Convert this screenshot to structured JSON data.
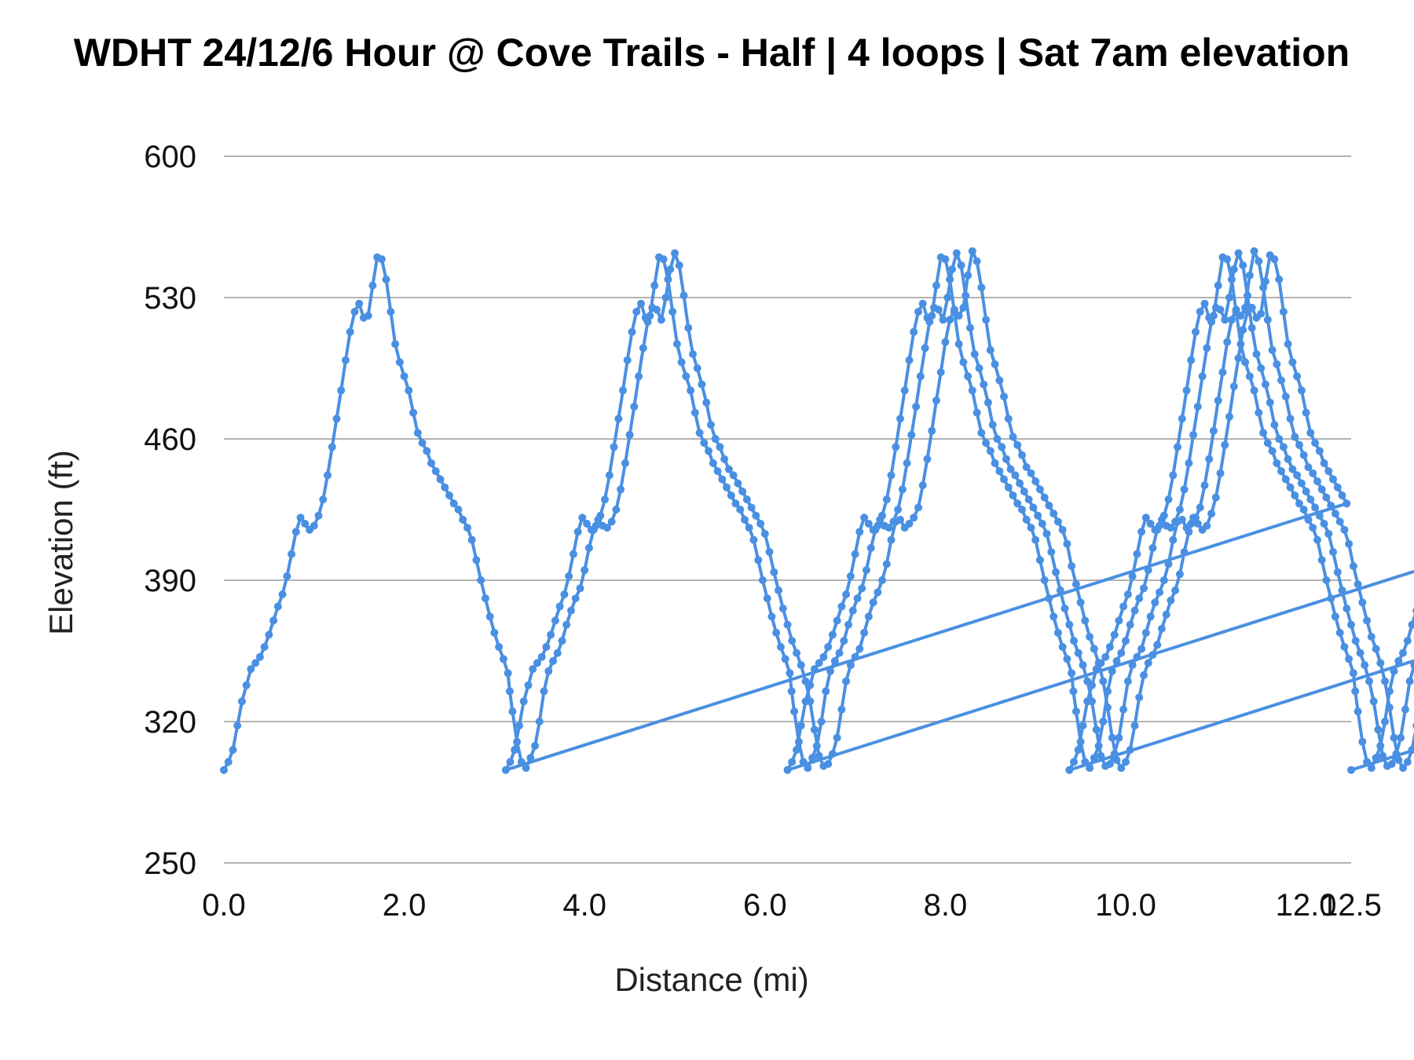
{
  "chart_data": {
    "type": "line",
    "title": "WDHT 24/12/6 Hour @ Cove Trails - Half | 4 loops | Sat 7am elevation",
    "xlabel": "Distance (mi)",
    "ylabel": "Elevation (ft)",
    "xlim": [
      0,
      12.5
    ],
    "ylim": [
      250,
      600
    ],
    "x_ticks": [
      "0.0",
      "2.0",
      "4.0",
      "6.0",
      "8.0",
      "10.0",
      "12.0",
      "12.5"
    ],
    "y_ticks": [
      "600",
      "530",
      "460",
      "390",
      "320",
      "250"
    ],
    "grid": true,
    "legend": "none",
    "color": "#4a90e2",
    "series": [
      {
        "loops": 4,
        "loop_length": 3.125,
        "points_per_loop": [
          [
            0.0,
            296
          ],
          [
            0.05,
            300
          ],
          [
            0.1,
            306
          ],
          [
            0.15,
            318
          ],
          [
            0.2,
            330
          ],
          [
            0.25,
            338
          ],
          [
            0.3,
            346
          ],
          [
            0.35,
            349
          ],
          [
            0.4,
            352
          ],
          [
            0.45,
            357
          ],
          [
            0.5,
            363
          ],
          [
            0.55,
            370
          ],
          [
            0.6,
            377
          ],
          [
            0.65,
            383
          ],
          [
            0.7,
            392
          ],
          [
            0.75,
            403
          ],
          [
            0.8,
            414
          ],
          [
            0.85,
            421
          ],
          [
            0.9,
            418
          ],
          [
            0.95,
            415
          ],
          [
            1.0,
            417
          ],
          [
            1.05,
            422
          ],
          [
            1.1,
            430
          ],
          [
            1.15,
            442
          ],
          [
            1.2,
            456
          ],
          [
            1.25,
            470
          ],
          [
            1.3,
            484
          ],
          [
            1.35,
            499
          ],
          [
            1.4,
            513
          ],
          [
            1.45,
            523
          ],
          [
            1.5,
            527
          ],
          [
            1.55,
            520
          ],
          [
            1.6,
            521
          ],
          [
            1.65,
            536
          ],
          [
            1.7,
            550
          ],
          [
            1.75,
            549
          ],
          [
            1.8,
            539
          ],
          [
            1.85,
            523
          ],
          [
            1.9,
            507
          ],
          [
            1.95,
            498
          ],
          [
            2.0,
            491
          ],
          [
            2.05,
            484
          ],
          [
            2.1,
            473
          ],
          [
            2.15,
            463
          ],
          [
            2.2,
            458
          ],
          [
            2.25,
            454
          ],
          [
            2.3,
            448
          ],
          [
            2.35,
            444
          ],
          [
            2.4,
            440
          ],
          [
            2.45,
            436
          ],
          [
            2.5,
            432
          ],
          [
            2.55,
            428
          ],
          [
            2.6,
            425
          ],
          [
            2.65,
            420
          ],
          [
            2.7,
            416
          ],
          [
            2.75,
            410
          ],
          [
            2.8,
            400
          ],
          [
            2.85,
            390
          ],
          [
            2.9,
            381
          ],
          [
            2.95,
            372
          ],
          [
            3.0,
            364
          ],
          [
            3.05,
            357
          ],
          [
            3.1,
            351
          ],
          [
            3.15,
            344
          ],
          [
            3.17,
            335
          ],
          [
            3.2,
            325
          ],
          [
            3.25,
            310
          ],
          [
            3.3,
            300
          ],
          [
            3.35,
            297
          ],
          [
            3.4,
            302
          ],
          [
            3.45,
            308
          ],
          [
            3.5,
            320
          ],
          [
            3.55,
            335
          ],
          [
            3.6,
            345
          ],
          [
            3.65,
            350
          ],
          [
            3.7,
            354
          ],
          [
            3.75,
            360
          ],
          [
            3.8,
            368
          ],
          [
            3.85,
            375
          ],
          [
            3.9,
            381
          ],
          [
            3.95,
            386
          ],
          [
            4.0,
            395
          ],
          [
            4.05,
            406
          ],
          [
            4.1,
            415
          ],
          [
            4.15,
            420
          ],
          [
            4.2,
            417
          ],
          [
            4.25,
            416
          ],
          [
            4.3,
            419
          ],
          [
            4.35,
            425
          ],
          [
            4.4,
            435
          ],
          [
            4.45,
            448
          ],
          [
            4.5,
            462
          ],
          [
            4.55,
            476
          ],
          [
            4.6,
            491
          ],
          [
            4.65,
            505
          ],
          [
            4.7,
            518
          ],
          [
            4.75,
            525
          ],
          [
            4.8,
            524
          ],
          [
            4.85,
            519
          ],
          [
            4.9,
            530
          ],
          [
            4.95,
            544
          ],
          [
            5.0,
            552
          ],
          [
            5.05,
            546
          ],
          [
            5.1,
            531
          ],
          [
            5.15,
            515
          ],
          [
            5.2,
            502
          ],
          [
            5.25,
            495
          ],
          [
            5.3,
            487
          ],
          [
            5.35,
            478
          ],
          [
            5.4,
            467
          ],
          [
            5.45,
            460
          ],
          [
            5.5,
            456
          ],
          [
            5.55,
            450
          ],
          [
            5.6,
            445
          ],
          [
            5.65,
            442
          ],
          [
            5.7,
            438
          ],
          [
            5.75,
            434
          ],
          [
            5.8,
            430
          ],
          [
            5.85,
            426
          ],
          [
            5.9,
            422
          ],
          [
            5.95,
            418
          ],
          [
            6.0,
            413
          ],
          [
            6.05,
            404
          ],
          [
            6.1,
            394
          ],
          [
            6.15,
            385
          ],
          [
            6.2,
            376
          ],
          [
            6.25,
            368
          ],
          [
            6.3,
            360
          ],
          [
            6.35,
            354
          ],
          [
            6.4,
            348
          ],
          [
            6.45,
            340
          ],
          [
            6.5,
            330
          ],
          [
            6.55,
            316
          ],
          [
            6.6,
            303
          ],
          [
            6.65,
            298
          ],
          [
            6.7,
            299
          ],
          [
            6.75,
            304
          ],
          [
            6.8,
            312
          ],
          [
            6.85,
            326
          ],
          [
            6.9,
            340
          ],
          [
            6.95,
            348
          ],
          [
            7.0,
            352
          ],
          [
            7.05,
            356
          ],
          [
            7.1,
            364
          ],
          [
            7.15,
            372
          ],
          [
            7.2,
            379
          ],
          [
            7.25,
            384
          ],
          [
            7.3,
            390
          ],
          [
            7.35,
            398
          ],
          [
            7.4,
            410
          ],
          [
            7.45,
            419
          ],
          [
            7.5,
            420
          ],
          [
            7.55,
            416
          ],
          [
            7.6,
            418
          ],
          [
            7.65,
            421
          ],
          [
            7.7,
            426
          ],
          [
            7.75,
            437
          ],
          [
            7.8,
            450
          ],
          [
            7.85,
            464
          ],
          [
            7.9,
            479
          ],
          [
            7.95,
            493
          ],
          [
            8.0,
            508
          ],
          [
            8.05,
            519
          ],
          [
            8.1,
            524
          ],
          [
            8.15,
            521
          ],
          [
            8.2,
            525
          ],
          [
            8.25,
            541
          ],
          [
            8.3,
            553
          ],
          [
            8.35,
            548
          ],
          [
            8.4,
            535
          ],
          [
            8.45,
            519
          ],
          [
            8.5,
            504
          ],
          [
            8.55,
            497
          ],
          [
            8.6,
            489
          ],
          [
            8.65,
            481
          ],
          [
            8.7,
            470
          ],
          [
            8.75,
            461
          ],
          [
            8.8,
            457
          ],
          [
            8.85,
            452
          ],
          [
            8.9,
            446
          ],
          [
            8.95,
            443
          ],
          [
            9.0,
            439
          ],
          [
            9.05,
            435
          ],
          [
            9.1,
            431
          ],
          [
            9.15,
            427
          ],
          [
            9.2,
            423
          ],
          [
            9.25,
            419
          ],
          [
            9.3,
            415
          ],
          [
            9.35,
            408
          ],
          [
            9.4,
            397
          ],
          [
            9.45,
            388
          ],
          [
            9.5,
            379
          ],
          [
            9.55,
            370
          ],
          [
            9.6,
            362
          ],
          [
            9.65,
            356
          ],
          [
            9.7,
            349
          ],
          [
            9.75,
            340
          ],
          [
            9.8,
            327
          ],
          [
            9.85,
            312
          ],
          [
            9.9,
            301
          ],
          [
            9.95,
            297
          ],
          [
            10.0,
            300
          ],
          [
            10.05,
            306
          ],
          [
            10.1,
            318
          ],
          [
            10.15,
            332
          ],
          [
            10.2,
            343
          ],
          [
            10.25,
            349
          ],
          [
            10.3,
            353
          ],
          [
            10.35,
            358
          ],
          [
            10.4,
            366
          ],
          [
            10.45,
            373
          ],
          [
            10.5,
            380
          ],
          [
            10.55,
            385
          ],
          [
            10.6,
            393
          ],
          [
            10.65,
            404
          ],
          [
            10.7,
            414
          ],
          [
            10.75,
            421
          ],
          [
            10.8,
            418
          ],
          [
            10.85,
            415
          ],
          [
            10.9,
            417
          ],
          [
            10.95,
            423
          ],
          [
            11.0,
            431
          ],
          [
            11.05,
            443
          ],
          [
            11.1,
            457
          ],
          [
            11.15,
            471
          ],
          [
            11.2,
            486
          ],
          [
            11.25,
            500
          ],
          [
            11.3,
            514
          ],
          [
            11.35,
            523
          ],
          [
            11.4,
            525
          ],
          [
            11.45,
            520
          ],
          [
            11.5,
            522
          ],
          [
            11.55,
            538
          ],
          [
            11.6,
            551
          ],
          [
            11.65,
            549
          ],
          [
            11.7,
            539
          ],
          [
            11.75,
            523
          ],
          [
            11.8,
            507
          ],
          [
            11.85,
            498
          ],
          [
            11.9,
            491
          ],
          [
            11.95,
            484
          ],
          [
            12.0,
            473
          ],
          [
            12.05,
            463
          ],
          [
            12.1,
            458
          ],
          [
            12.15,
            454
          ],
          [
            12.2,
            448
          ],
          [
            12.25,
            444
          ],
          [
            12.3,
            440
          ],
          [
            12.35,
            436
          ],
          [
            12.4,
            432
          ],
          [
            12.45,
            428
          ]
        ]
      }
    ]
  }
}
